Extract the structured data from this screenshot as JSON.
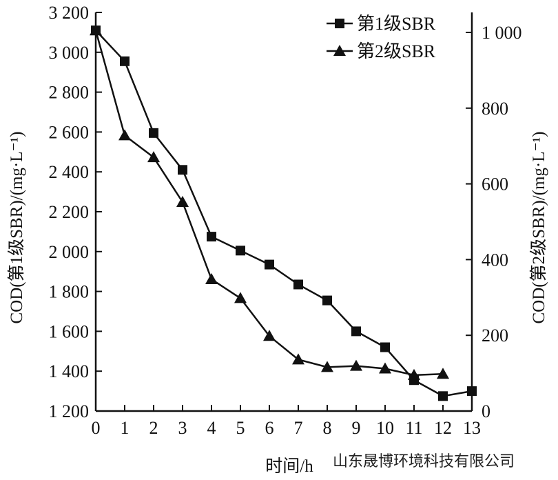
{
  "chart_data": {
    "type": "line",
    "xlabel": "时间/h",
    "ylabel_left": "COD(第1级SBR)/(mg·L⁻¹)",
    "ylabel_right": "COD(第2级SBR)/(mg·L⁻¹)",
    "xlim": [
      0,
      13
    ],
    "ylim_left": [
      1200,
      3200
    ],
    "ylim_right": [
      0,
      1000
    ],
    "x_ticks": [
      "0",
      "1",
      "2",
      "3",
      "4",
      "5",
      "6",
      "7",
      "8",
      "9",
      "10",
      "11",
      "12",
      "13"
    ],
    "y_left_ticks": [
      "1 200",
      "1 400",
      "1 600",
      "1 800",
      "2 000",
      "2 200",
      "2 400",
      "2 600",
      "2 800",
      "3 000",
      "3 200"
    ],
    "y_right_ticks": [
      "0",
      "200",
      "400",
      "600",
      "800",
      "1 000"
    ],
    "legend_position": "top-right",
    "series": [
      {
        "name": "第1级SBR",
        "marker": "square",
        "axis": "left",
        "x": [
          0,
          1,
          2,
          3,
          4,
          5,
          6,
          7,
          8,
          9,
          10,
          11,
          12,
          13
        ],
        "y": [
          3110,
          2955,
          2595,
          2410,
          2075,
          2005,
          1935,
          1835,
          1755,
          1600,
          1520,
          1355,
          1275,
          1300
        ]
      },
      {
        "name": "第2级SBR",
        "marker": "triangle",
        "axis": "right",
        "x": [
          0,
          1,
          2,
          3,
          4,
          5,
          6,
          7,
          8,
          9,
          10,
          11,
          12
        ],
        "y": [
          1005,
          728,
          670,
          552,
          348,
          298,
          198,
          136,
          116,
          119,
          112,
          95,
          98
        ]
      }
    ]
  },
  "watermark": "山东晟博环境科技有限公司"
}
